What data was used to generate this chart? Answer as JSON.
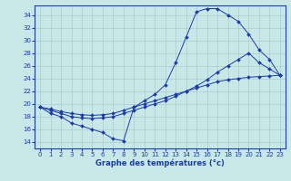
{
  "title": "Graphe des températures (°c)",
  "bg_color": "#c8e8e8",
  "line_color": "#1a3aad",
  "grid_color": "#aacccc",
  "xlim": [
    -0.5,
    23.5
  ],
  "ylim": [
    13,
    35.5
  ],
  "xticks": [
    0,
    1,
    2,
    3,
    4,
    5,
    6,
    7,
    8,
    9,
    10,
    11,
    12,
    13,
    14,
    15,
    16,
    17,
    18,
    19,
    20,
    21,
    22,
    23
  ],
  "yticks": [
    14,
    16,
    18,
    20,
    22,
    24,
    26,
    28,
    30,
    32,
    34
  ],
  "curve_a": {
    "x": [
      0,
      1,
      2,
      3,
      4,
      5,
      6,
      7,
      8,
      9,
      10,
      11,
      12,
      13,
      14,
      15,
      16,
      17,
      18,
      19,
      20,
      21,
      22,
      23
    ],
    "y": [
      19.5,
      18.5,
      18.0,
      17.0,
      16.5,
      16.0,
      15.5,
      14.5,
      14.2,
      19.5,
      20.5,
      21.5,
      23.0,
      26.5,
      30.5,
      34.5,
      35.0,
      35.0,
      34.0,
      33.0,
      31.0,
      28.5,
      27.0,
      24.5
    ]
  },
  "curve_b": {
    "x": [
      0,
      1,
      2,
      3,
      4,
      5,
      6,
      7,
      8,
      9,
      10,
      11,
      12,
      13,
      14,
      15,
      16,
      17,
      18,
      19,
      20,
      21,
      22,
      23
    ],
    "y": [
      19.5,
      19.2,
      18.8,
      18.5,
      18.3,
      18.2,
      18.3,
      18.5,
      19.0,
      19.5,
      20.0,
      20.5,
      21.0,
      21.5,
      22.0,
      22.5,
      23.0,
      23.5,
      23.8,
      24.0,
      24.2,
      24.3,
      24.4,
      24.5
    ]
  },
  "curve_c": {
    "x": [
      0,
      1,
      2,
      3,
      4,
      5,
      6,
      7,
      8,
      9,
      10,
      11,
      12,
      13,
      14,
      15,
      16,
      17,
      18,
      19,
      20,
      21,
      22,
      23
    ],
    "y": [
      19.5,
      19.0,
      18.5,
      18.0,
      17.8,
      17.7,
      17.8,
      18.0,
      18.5,
      19.0,
      19.5,
      20.0,
      20.5,
      21.2,
      22.0,
      22.8,
      23.8,
      25.0,
      26.0,
      27.0,
      28.0,
      26.5,
      25.5,
      24.5
    ]
  }
}
